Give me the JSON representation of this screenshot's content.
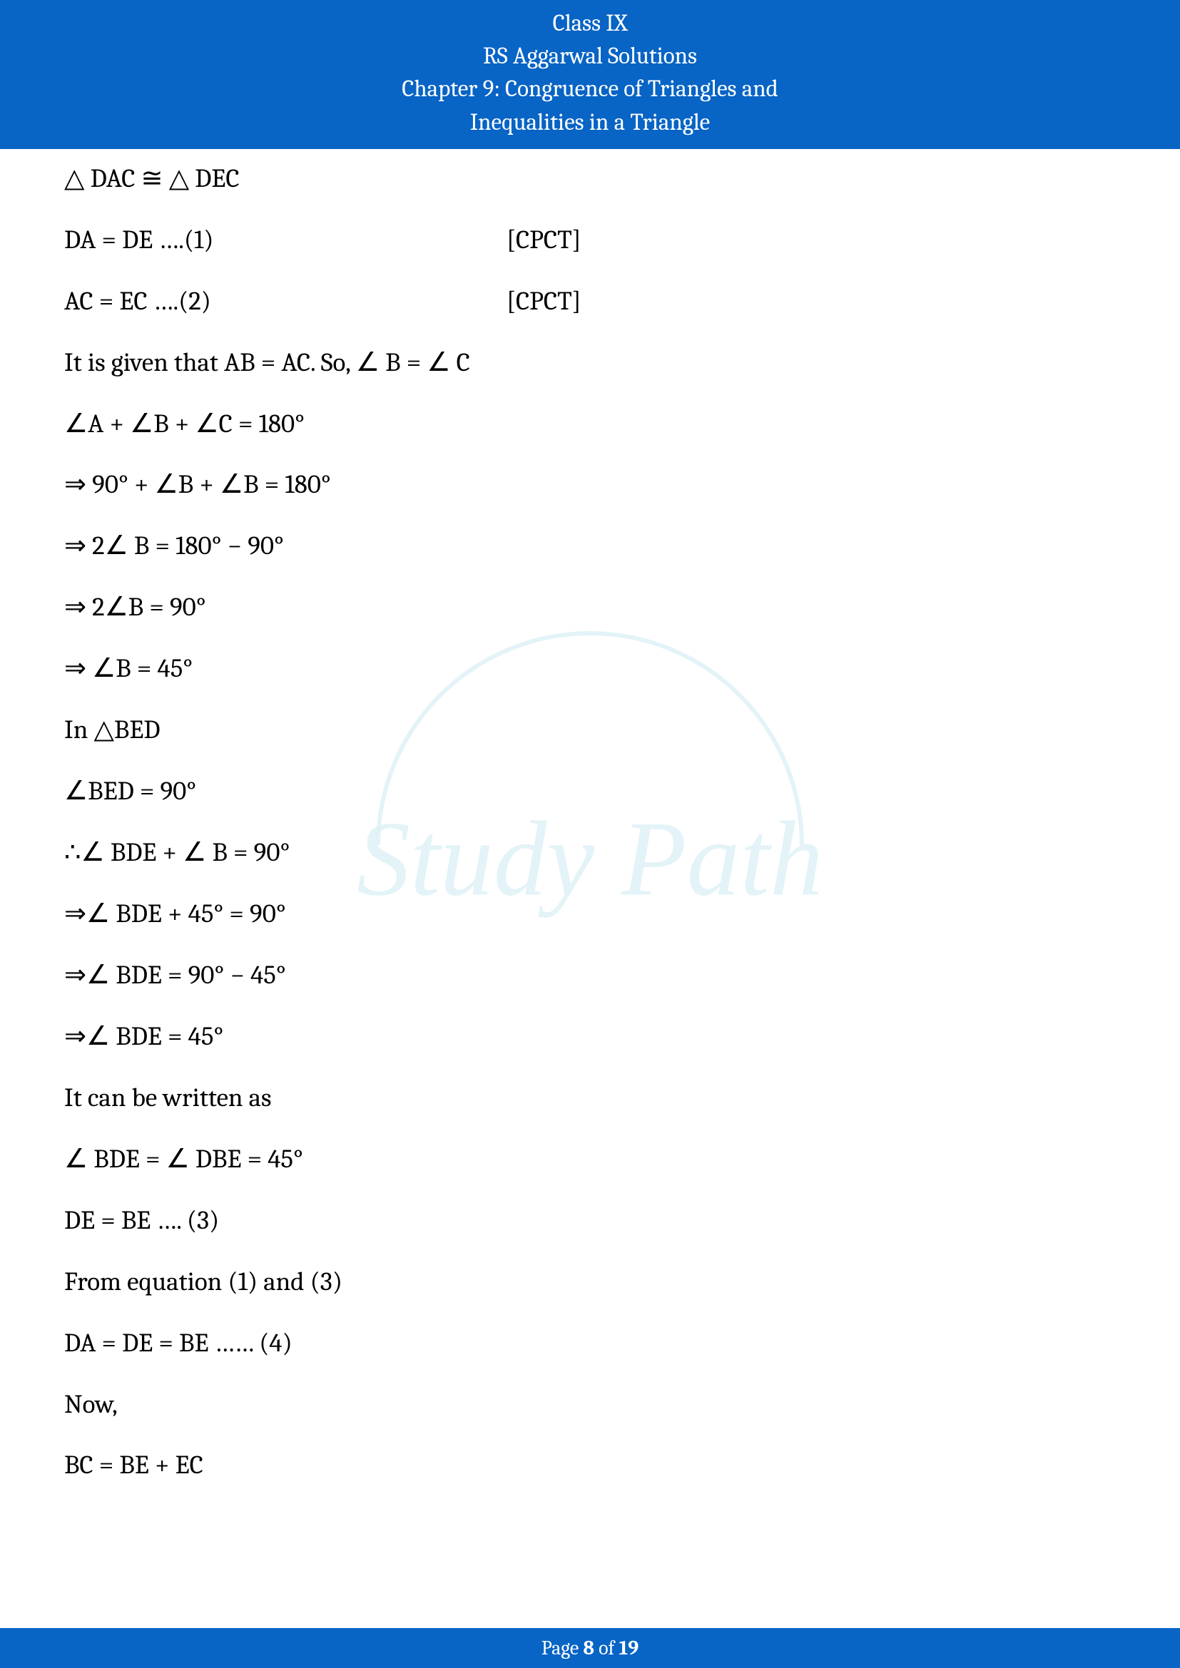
{
  "header": {
    "line1": "Class IX",
    "line2": "RS Aggarwal Solutions",
    "line3": "Chapter 9: Congruence of Triangles and",
    "line4": "Inequalities in a Triangle",
    "bg_color": "#0864c5",
    "text_color": "#ffffff"
  },
  "watermark": {
    "text": "Study Path",
    "color": "#dff1f7"
  },
  "body": {
    "p1": "△ DAC ≅ △ DEC",
    "p2_left": "DA = DE ….(1)",
    "p2_right": "[CPCT]",
    "p3_left": "AC = EC ….(2)",
    "p3_right": "[CPCT]",
    "p4": "It is given that AB = AC. So, ∠ B = ∠ C",
    "p5": "∠A + ∠B + ∠C = 180°",
    "p6": "⇒ 90° + ∠B + ∠B = 180°",
    "p7": "⇒ 2∠ B = 180° − 90°",
    "p8": "⇒ 2∠B  =  90°",
    "p9": "⇒ ∠B  =  45°",
    "p10": "In △BED",
    "p11": "∠BED = 90°",
    "p12": "∴∠ BDE + ∠ B = 90°",
    "p13": "⇒∠ BDE + 45° = 90°",
    "p14": "⇒∠ BDE = 90° − 45°",
    "p15": "⇒∠ BDE = 45°",
    "p16": "It can be written as",
    "p17": "∠ BDE = ∠ DBE = 45°",
    "p18": "DE = BE …. (3)",
    "p19": "From equation (1) and (3)",
    "p20": "DA = DE = BE …… (4)",
    "p21": "Now,",
    "p22": "BC = BE + EC"
  },
  "footer": {
    "prefix": "Page ",
    "page_num": "8",
    "mid": " of ",
    "total": "19",
    "bg_color": "#0864c5",
    "text_color": "#ffffff"
  }
}
